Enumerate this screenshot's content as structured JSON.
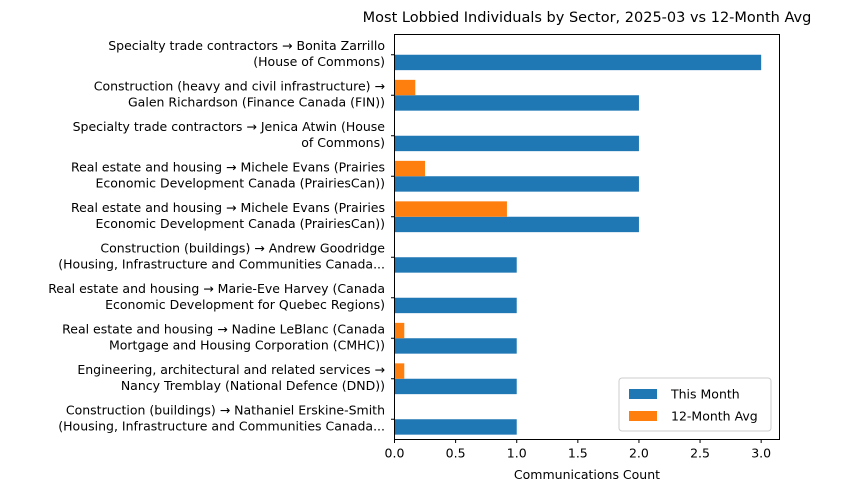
{
  "chart_data": {
    "type": "bar",
    "orientation": "horizontal",
    "title": "Most Lobbied Individuals by Sector, 2025-03 vs 12-Month Avg",
    "xlabel": "Communications Count",
    "ylabel": "",
    "xlim": [
      0,
      3.15
    ],
    "xticks": [
      "0.0",
      "0.5",
      "1.0",
      "1.5",
      "2.0",
      "2.5",
      "3.0"
    ],
    "categories": [
      [
        "Specialty trade contractors → Bonita Zarrillo",
        "(House of Commons)"
      ],
      [
        "Construction (heavy and civil infrastructure) →",
        "Galen Richardson (Finance Canada (FIN))"
      ],
      [
        "Specialty trade contractors → Jenica Atwin (House",
        "of Commons)"
      ],
      [
        "Real estate and housing → Michele Evans (Prairies",
        "Economic Development Canada (PrairiesCan))"
      ],
      [
        "Real estate and housing → Michele Evans (Prairies",
        "Economic Development Canada (PrairiesCan))"
      ],
      [
        "Construction (buildings) → Andrew Goodridge",
        "(Housing, Infrastructure and Communities Canada..."
      ],
      [
        "Real estate and housing → Marie-Eve Harvey (Canada",
        "Economic Development for Quebec Regions)"
      ],
      [
        "Real estate and housing → Nadine LeBlanc (Canada",
        "Mortgage and Housing Corporation (CMHC))"
      ],
      [
        "Engineering, architectural and related services →",
        "Nancy Tremblay (National Defence (DND))"
      ],
      [
        "Construction (buildings) → Nathaniel Erskine-Smith",
        "(Housing, Infrastructure and Communities Canada..."
      ]
    ],
    "series": [
      {
        "name": "This Month",
        "color": "#1f77b4",
        "values": [
          3,
          2,
          2,
          2,
          2,
          1,
          1,
          1,
          1,
          1
        ]
      },
      {
        "name": "12-Month Avg",
        "color": "#ff7f0e",
        "values": [
          0,
          0.17,
          0,
          0.25,
          0.92,
          0,
          0,
          0.08,
          0.08,
          0
        ]
      }
    ],
    "legend": "lower-right",
    "grid": false
  }
}
